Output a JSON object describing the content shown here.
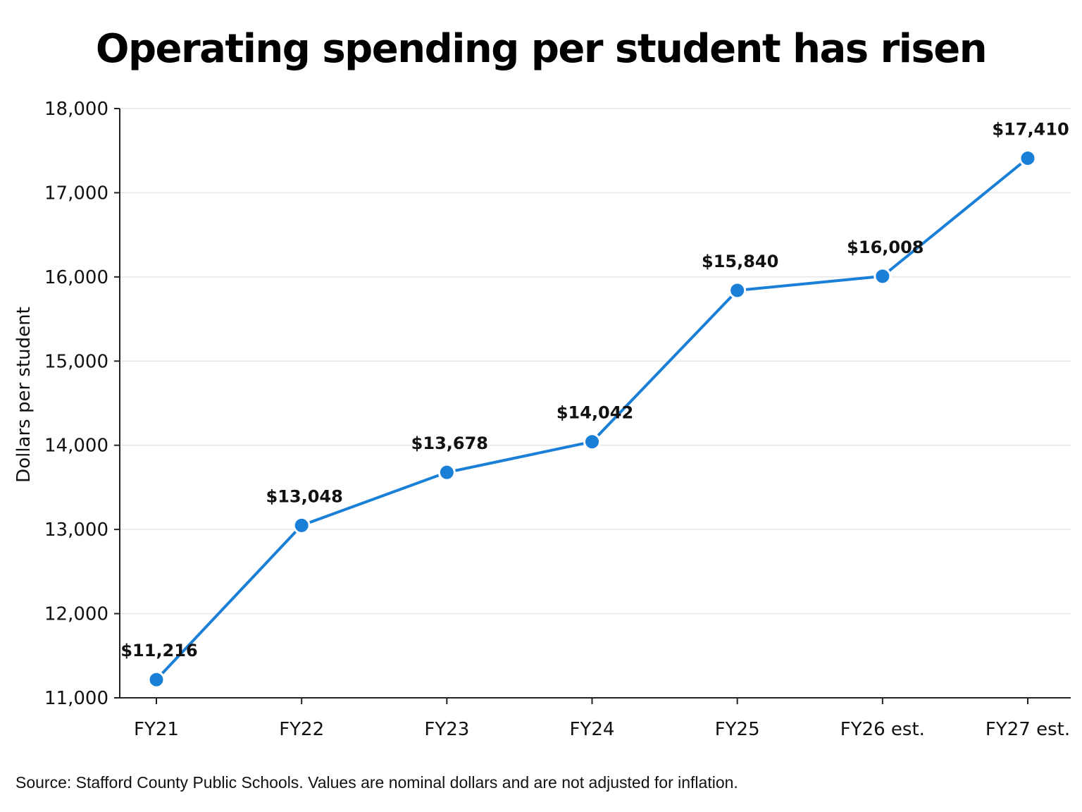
{
  "chart_data": {
    "type": "line",
    "title": "Operating spending per student has risen",
    "xlabel": "",
    "ylabel": "Dollars per student",
    "categories": [
      "FY21",
      "FY22",
      "FY23",
      "FY24",
      "FY25",
      "FY26 est.",
      "FY27 est."
    ],
    "series": [
      {
        "values": [
          11216,
          13048,
          13678,
          14042,
          15840,
          16008,
          17410
        ],
        "data_labels": [
          "$11,216",
          "$13,048",
          "$13,678",
          "$14,042",
          "$15,840",
          "$16,008",
          "$17,410"
        ],
        "color": "#1a7fd6"
      }
    ],
    "ylim": [
      11000,
      18000
    ],
    "yticks": [
      11000,
      12000,
      13000,
      14000,
      15000,
      16000,
      17000,
      18000
    ],
    "ytick_labels": [
      "11,000",
      "12,000",
      "13,000",
      "14,000",
      "15,000",
      "16,000",
      "17,000",
      "18,000"
    ],
    "grid": "horizontal",
    "legend": "none",
    "source": "Source: Stafford County Public Schools. Values are nominal dollars and are not adjusted for inflation."
  }
}
